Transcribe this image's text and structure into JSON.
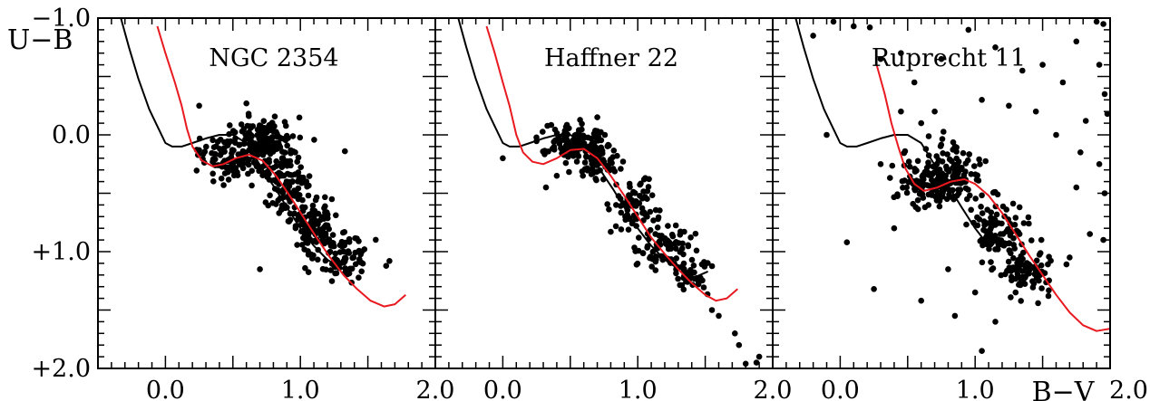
{
  "chart_data": {
    "type": "scatter",
    "ylabel": "U−B",
    "xlabel": "B−V",
    "xlim": [
      -0.5,
      2.0
    ],
    "ylim": [
      2.0,
      -1.0
    ],
    "y_inverted": true,
    "x_ticks": [
      "0.0",
      "1.0",
      "2.0"
    ],
    "y_ticks": [
      "−1.0",
      "0.0",
      "+1.0",
      "+2.0"
    ],
    "colors": {
      "points": "#000000",
      "curve_black": "#000000",
      "curve_red": "#e8191f"
    },
    "panels": [
      {
        "title": "NGC 2354",
        "curve_black": [
          [
            -0.33,
            -1.0
          ],
          [
            -0.27,
            -0.75
          ],
          [
            -0.2,
            -0.48
          ],
          [
            -0.12,
            -0.22
          ],
          [
            -0.05,
            -0.05
          ],
          [
            0.0,
            0.07
          ],
          [
            0.05,
            0.1
          ],
          [
            0.12,
            0.1
          ],
          [
            0.2,
            0.07
          ],
          [
            0.3,
            0.03
          ],
          [
            0.4,
            0.0
          ],
          [
            0.5,
            0.0
          ],
          [
            0.6,
            0.07
          ],
          [
            0.68,
            0.22
          ],
          [
            0.75,
            0.35
          ],
          [
            0.82,
            0.47
          ],
          [
            0.9,
            0.62
          ],
          [
            1.0,
            0.8
          ],
          [
            1.1,
            0.95
          ],
          [
            1.2,
            1.07
          ],
          [
            1.32,
            1.15
          ]
        ],
        "curve_red": [
          [
            -0.06,
            -0.93
          ],
          [
            0.0,
            -0.7
          ],
          [
            0.07,
            -0.45
          ],
          [
            0.12,
            -0.25
          ],
          [
            0.16,
            -0.05
          ],
          [
            0.2,
            0.1
          ],
          [
            0.27,
            0.22
          ],
          [
            0.35,
            0.27
          ],
          [
            0.43,
            0.25
          ],
          [
            0.52,
            0.2
          ],
          [
            0.62,
            0.17
          ],
          [
            0.72,
            0.22
          ],
          [
            0.82,
            0.35
          ],
          [
            0.92,
            0.52
          ],
          [
            1.02,
            0.7
          ],
          [
            1.12,
            0.88
          ],
          [
            1.22,
            1.05
          ],
          [
            1.32,
            1.2
          ],
          [
            1.42,
            1.32
          ],
          [
            1.52,
            1.42
          ],
          [
            1.62,
            1.47
          ],
          [
            1.7,
            1.45
          ],
          [
            1.78,
            1.37
          ]
        ],
        "cluster_points": [
          [
            0.25,
            -0.25
          ],
          [
            0.6,
            -0.27
          ],
          [
            1.33,
            0.14
          ],
          [
            0.7,
            1.15
          ],
          [
            1.66,
            1.08
          ],
          [
            0.25,
            0.13
          ],
          [
            0.35,
            0.23
          ],
          [
            0.45,
            0.28
          ],
          [
            0.55,
            0.25
          ]
        ],
        "scatter_clusters": [
          {
            "cx": 0.52,
            "cy": 0.18,
            "sx": 0.14,
            "sy": 0.1,
            "n": 110
          },
          {
            "cx": 0.72,
            "cy": 0.05,
            "sx": 0.1,
            "sy": 0.1,
            "n": 130
          },
          {
            "cx": 0.9,
            "cy": 0.4,
            "sx": 0.09,
            "sy": 0.14,
            "n": 110
          },
          {
            "cx": 1.1,
            "cy": 0.75,
            "sx": 0.09,
            "sy": 0.13,
            "n": 110
          },
          {
            "cx": 1.32,
            "cy": 1.05,
            "sx": 0.1,
            "sy": 0.09,
            "n": 90
          }
        ]
      },
      {
        "title": "Haffner 22",
        "curve_black": [
          [
            -0.33,
            -1.0
          ],
          [
            -0.27,
            -0.75
          ],
          [
            -0.2,
            -0.48
          ],
          [
            -0.12,
            -0.22
          ],
          [
            -0.05,
            -0.05
          ],
          [
            0.0,
            0.07
          ],
          [
            0.05,
            0.1
          ],
          [
            0.12,
            0.1
          ],
          [
            0.2,
            0.07
          ],
          [
            0.3,
            0.03
          ],
          [
            0.4,
            0.0
          ],
          [
            0.5,
            0.0
          ],
          [
            0.6,
            0.07
          ],
          [
            0.68,
            0.22
          ],
          [
            0.75,
            0.35
          ],
          [
            0.82,
            0.47
          ],
          [
            0.9,
            0.62
          ],
          [
            1.0,
            0.8
          ],
          [
            1.1,
            0.95
          ],
          [
            1.2,
            1.07
          ],
          [
            1.32,
            1.15
          ],
          [
            1.42,
            1.22
          ],
          [
            1.52,
            1.17
          ]
        ],
        "curve_red": [
          [
            -0.12,
            -0.93
          ],
          [
            -0.06,
            -0.7
          ],
          [
            0.0,
            -0.45
          ],
          [
            0.05,
            -0.25
          ],
          [
            0.1,
            0.0
          ],
          [
            0.15,
            0.15
          ],
          [
            0.22,
            0.23
          ],
          [
            0.3,
            0.25
          ],
          [
            0.4,
            0.2
          ],
          [
            0.5,
            0.13
          ],
          [
            0.6,
            0.12
          ],
          [
            0.7,
            0.2
          ],
          [
            0.8,
            0.35
          ],
          [
            0.9,
            0.52
          ],
          [
            1.0,
            0.7
          ],
          [
            1.1,
            0.88
          ],
          [
            1.2,
            1.02
          ],
          [
            1.3,
            1.15
          ],
          [
            1.4,
            1.27
          ],
          [
            1.5,
            1.37
          ],
          [
            1.58,
            1.42
          ],
          [
            1.66,
            1.4
          ],
          [
            1.74,
            1.32
          ]
        ],
        "cluster_points": [
          [
            0.0,
            0.2
          ],
          [
            0.32,
            0.45
          ],
          [
            0.4,
            0.35
          ],
          [
            0.7,
            -0.15
          ],
          [
            0.45,
            0.0
          ],
          [
            1.45,
            1.28
          ],
          [
            1.55,
            1.5
          ],
          [
            1.6,
            1.55
          ],
          [
            1.72,
            1.7
          ],
          [
            1.75,
            1.8
          ],
          [
            1.8,
            1.96
          ],
          [
            1.88,
            1.95
          ],
          [
            1.9,
            1.9
          ]
        ],
        "scatter_clusters": [
          {
            "cx": 0.5,
            "cy": 0.05,
            "sx": 0.12,
            "sy": 0.08,
            "n": 100
          },
          {
            "cx": 0.7,
            "cy": 0.22,
            "sx": 0.08,
            "sy": 0.09,
            "n": 90
          },
          {
            "cx": 0.95,
            "cy": 0.6,
            "sx": 0.09,
            "sy": 0.12,
            "n": 70
          },
          {
            "cx": 1.2,
            "cy": 0.95,
            "sx": 0.1,
            "sy": 0.11,
            "n": 80
          },
          {
            "cx": 1.4,
            "cy": 1.2,
            "sx": 0.07,
            "sy": 0.08,
            "n": 40
          }
        ]
      },
      {
        "title": "Ruprecht 11",
        "curve_black": [
          [
            -0.33,
            -1.0
          ],
          [
            -0.27,
            -0.75
          ],
          [
            -0.2,
            -0.48
          ],
          [
            -0.12,
            -0.22
          ],
          [
            -0.05,
            -0.05
          ],
          [
            0.0,
            0.07
          ],
          [
            0.05,
            0.1
          ],
          [
            0.12,
            0.1
          ],
          [
            0.2,
            0.07
          ],
          [
            0.3,
            0.03
          ],
          [
            0.4,
            0.0
          ],
          [
            0.5,
            0.0
          ],
          [
            0.6,
            0.07
          ],
          [
            0.68,
            0.22
          ],
          [
            0.75,
            0.35
          ],
          [
            0.82,
            0.47
          ],
          [
            0.9,
            0.62
          ],
          [
            1.0,
            0.8
          ],
          [
            1.1,
            0.95
          ]
        ],
        "curve_red": [
          [
            0.27,
            -0.6
          ],
          [
            0.33,
            -0.35
          ],
          [
            0.38,
            -0.1
          ],
          [
            0.43,
            0.1
          ],
          [
            0.48,
            0.28
          ],
          [
            0.55,
            0.42
          ],
          [
            0.62,
            0.48
          ],
          [
            0.72,
            0.45
          ],
          [
            0.82,
            0.4
          ],
          [
            0.92,
            0.38
          ],
          [
            1.0,
            0.42
          ],
          [
            1.1,
            0.52
          ],
          [
            1.2,
            0.67
          ],
          [
            1.3,
            0.85
          ],
          [
            1.4,
            1.03
          ],
          [
            1.5,
            1.2
          ],
          [
            1.6,
            1.37
          ],
          [
            1.7,
            1.52
          ],
          [
            1.8,
            1.63
          ],
          [
            1.9,
            1.68
          ],
          [
            2.0,
            1.66
          ]
        ],
        "cluster_points": [
          [
            -0.2,
            -0.85
          ],
          [
            -0.05,
            -0.97
          ],
          [
            0.1,
            -0.93
          ],
          [
            0.22,
            -0.92
          ],
          [
            0.3,
            -0.65
          ],
          [
            0.45,
            -0.7
          ],
          [
            0.55,
            -0.45
          ],
          [
            0.75,
            -0.65
          ],
          [
            0.95,
            -0.9
          ],
          [
            1.15,
            -0.75
          ],
          [
            1.35,
            -0.55
          ],
          [
            1.5,
            -0.6
          ],
          [
            1.65,
            -0.45
          ],
          [
            1.75,
            -0.8
          ],
          [
            1.9,
            -0.97
          ],
          [
            1.92,
            -0.6
          ],
          [
            1.96,
            -0.35
          ],
          [
            1.98,
            -0.18
          ],
          [
            1.95,
            -0.95
          ],
          [
            -0.1,
            0.0
          ],
          [
            0.3,
            0.25
          ],
          [
            0.45,
            -0.2
          ],
          [
            0.6,
            -0.1
          ],
          [
            0.7,
            -0.2
          ],
          [
            0.85,
            0.1
          ],
          [
            1.05,
            -0.3
          ],
          [
            1.25,
            -0.25
          ],
          [
            1.45,
            -0.2
          ],
          [
            1.6,
            0.0
          ],
          [
            1.78,
            0.15
          ],
          [
            1.82,
            -0.12
          ],
          [
            1.92,
            0.25
          ],
          [
            1.96,
            0.5
          ],
          [
            1.75,
            0.45
          ],
          [
            0.05,
            0.92
          ],
          [
            0.25,
            1.32
          ],
          [
            0.4,
            0.8
          ],
          [
            0.55,
            0.4
          ],
          [
            0.6,
            1.42
          ],
          [
            0.8,
            1.15
          ],
          [
            0.85,
            1.55
          ],
          [
            1.0,
            1.35
          ],
          [
            1.05,
            1.85
          ],
          [
            1.15,
            1.6
          ],
          [
            1.3,
            1.35
          ],
          [
            1.45,
            1.18
          ],
          [
            1.7,
            1.05
          ],
          [
            1.85,
            0.85
          ],
          [
            1.95,
            0.9
          ]
        ],
        "scatter_clusters": [
          {
            "cx": 0.82,
            "cy": 0.35,
            "sx": 0.12,
            "sy": 0.12,
            "n": 150
          },
          {
            "cx": 0.6,
            "cy": 0.42,
            "sx": 0.1,
            "sy": 0.09,
            "n": 60
          },
          {
            "cx": 1.15,
            "cy": 0.8,
            "sx": 0.09,
            "sy": 0.13,
            "n": 100
          },
          {
            "cx": 1.38,
            "cy": 1.15,
            "sx": 0.1,
            "sy": 0.1,
            "n": 90
          }
        ]
      }
    ]
  }
}
